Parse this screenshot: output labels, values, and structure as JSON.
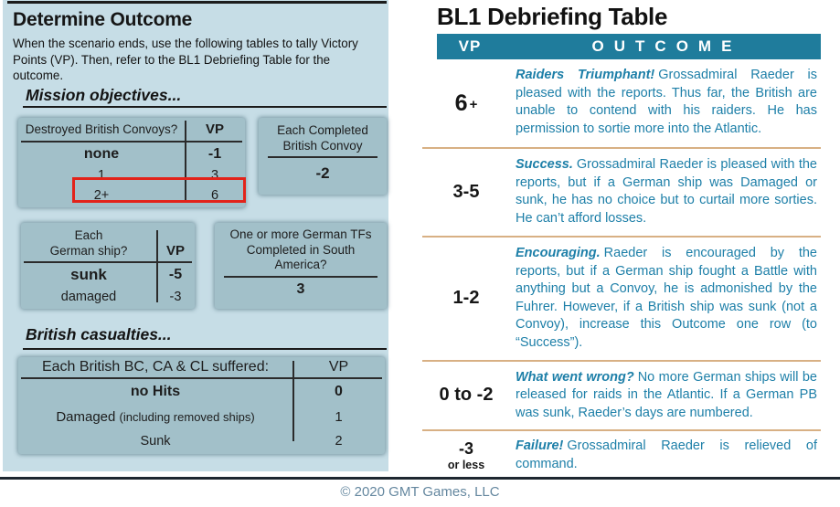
{
  "colors": {
    "panel_bg": "#c6dde6",
    "table_box_bg": "#a2c0c9",
    "header_bar": "#1f7c9c",
    "outcome_text": "#1d7fa8",
    "row_divider": "#d8b084",
    "highlight_red": "#e2231a",
    "footer_text": "#64879f"
  },
  "left_panel": {
    "title": "Determine Outcome",
    "intro": "When the scenario ends, use the following tables to tally Victory Points (VP). Then, refer to the BL1 Debriefing Table for the outcome.",
    "mission_heading": "Mission objectives...",
    "casualties_heading": "British casualties...",
    "convoys_table": {
      "col1": "Destroyed British Convoys?",
      "col2": "VP",
      "rows": [
        {
          "label": "none",
          "vp": "-1",
          "highlighted": false
        },
        {
          "label": "1",
          "vp": "3",
          "highlighted": false
        },
        {
          "label": "2+",
          "vp": "6",
          "highlighted": true
        }
      ]
    },
    "completed_convoy_box": {
      "label": "Each Completed British Convoy",
      "value": "-2"
    },
    "german_ship_table": {
      "col1_line1": "Each",
      "col1_line2": "German ship?",
      "col2": "VP",
      "rows": [
        {
          "label": "sunk",
          "vp": "-5"
        },
        {
          "label": "damaged",
          "vp": "-3"
        }
      ]
    },
    "south_america_box": {
      "label": "One or more German TFs Completed in South America?",
      "value": "3"
    },
    "casualties_table": {
      "col1": "Each British BC, CA & CL suffered:",
      "col2": "VP",
      "rows": [
        {
          "label": "no Hits",
          "note": "",
          "vp": "0"
        },
        {
          "label": "Damaged",
          "note": "(including removed ships)",
          "vp": "1"
        },
        {
          "label": "Sunk",
          "note": "",
          "vp": "2"
        }
      ]
    }
  },
  "debriefing": {
    "title": "BL1 Debriefing Table",
    "header": {
      "vp": "VP",
      "outcome": "OUTCOME"
    },
    "rows": [
      {
        "vp": "6",
        "vp_suffix": "+",
        "lead": "Raiders Triumphant!",
        "text": "Grossadmiral Raeder is pleased with the reports. Thus far, the British are unable to contend with his raiders. He has permission to sortie more into the Atlantic."
      },
      {
        "vp": "3-5",
        "lead": "Success.",
        "text": "Grossadmiral Raeder is pleased with the reports, but if a German ship was Damaged or sunk, he has no choice but to curtail more sorties. He can’t afford losses."
      },
      {
        "vp": "1-2",
        "lead": "Encouraging.",
        "text": "Raeder is encouraged by the reports, but if a German ship fought a Battle with anything but a Convoy, he is admonished by the Fuhrer. However, if a British ship was sunk (not a Convoy), increase this Outcome one row (to “Success”)."
      },
      {
        "vp": "0 to -2",
        "lead": "What went wrong?",
        "text": "No more German ships will be released for raids in the Atlantic. If a German PB was sunk, Raeder’s days are numbered."
      },
      {
        "vp": "-3",
        "vp_sub": "or less",
        "lead": "Failure!",
        "text": "Grossadmiral Raeder is relieved of command."
      }
    ]
  },
  "footer": {
    "copyright": "© 2020 GMT Games, LLC"
  }
}
